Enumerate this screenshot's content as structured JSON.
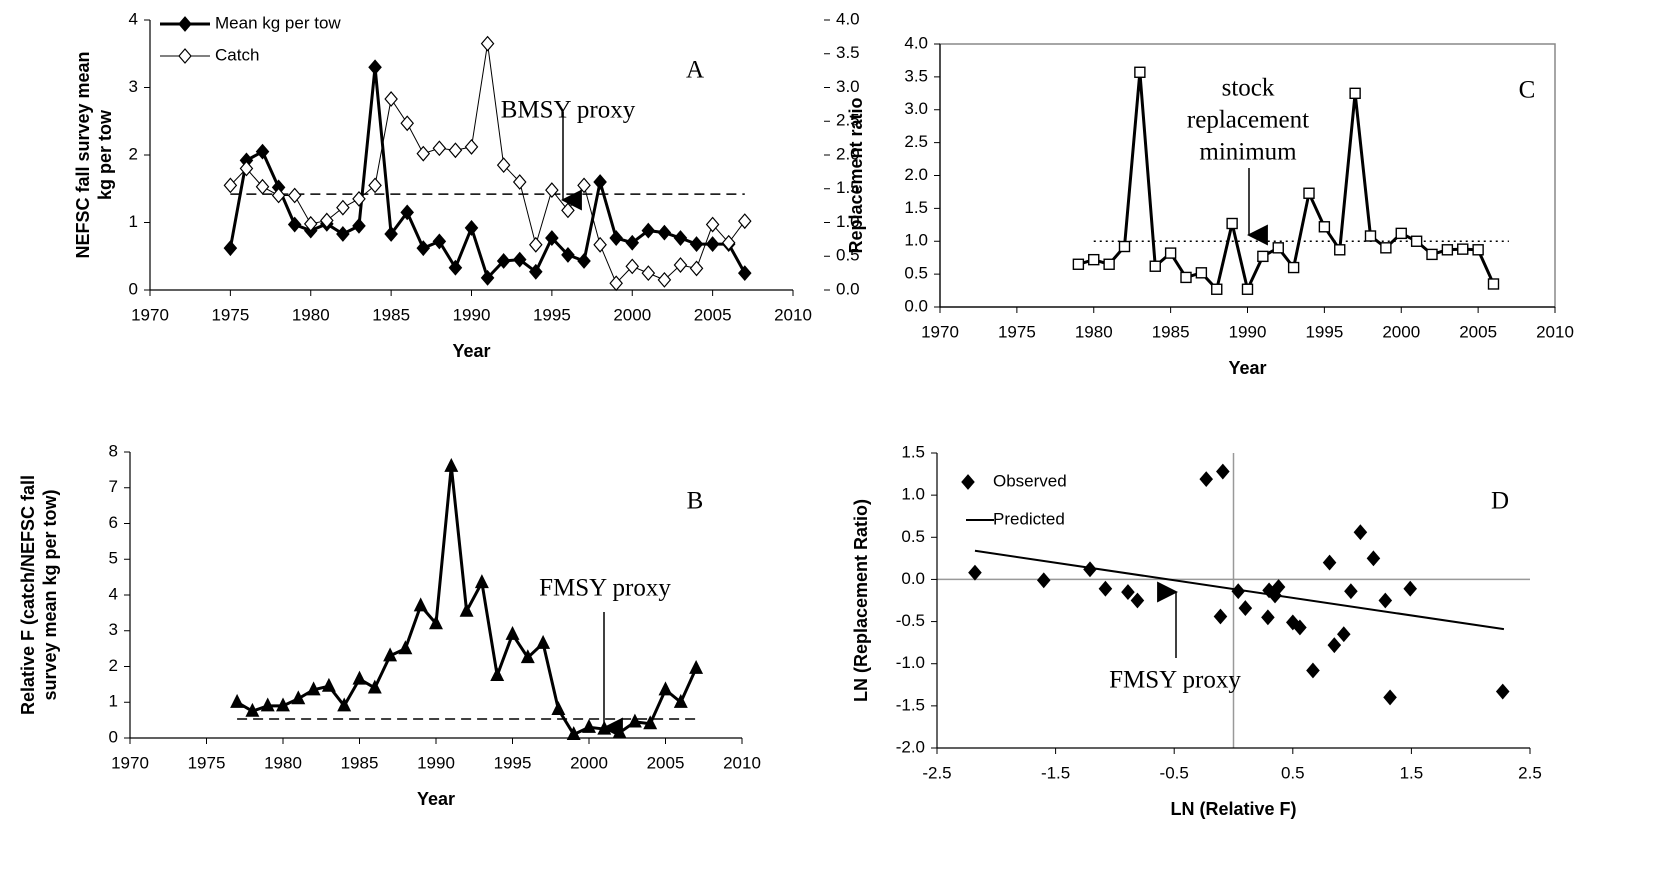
{
  "chart_data": [
    {
      "type": "line",
      "annotations": [
        "A",
        "BMSY proxy"
      ],
      "ylabel": [
        "NEFSC fall survey mean",
        "kg per tow"
      ],
      "xlabel": "Year",
      "xlim": [
        1970,
        2010
      ],
      "xticks": [
        1970,
        1975,
        1980,
        1985,
        1990,
        1995,
        2000,
        2005,
        2010
      ],
      "ylim": [
        0,
        4
      ],
      "yticks": [
        0,
        1,
        2,
        3,
        4
      ],
      "y2lim": [
        0,
        4
      ],
      "y2ticks": [
        {
          "value": 0,
          "label": "0.0"
        },
        0.5,
        {
          "value": 1,
          "label": "1.0"
        },
        1.5,
        {
          "value": 2,
          "label": "2.0"
        },
        2.5,
        {
          "value": 3,
          "label": "3.0"
        },
        3.5,
        {
          "value": 4,
          "label": "4.0"
        }
      ],
      "legend": "upper left",
      "reference_line": {
        "value": 1.42,
        "from": 1975,
        "to": 2007,
        "style": "dashed"
      },
      "x": [
        1975,
        1976,
        1977,
        1978,
        1979,
        1980,
        1981,
        1982,
        1983,
        1984,
        1985,
        1986,
        1987,
        1988,
        1989,
        1990,
        1991,
        1992,
        1993,
        1994,
        1995,
        1996,
        1997,
        1998,
        1999,
        2000,
        2001,
        2002,
        2003,
        2004,
        2005,
        2006,
        2007
      ],
      "series": [
        {
          "name": "Mean kg per tow",
          "color": "#000000",
          "marker": "diamond",
          "filled": true,
          "width": 3,
          "values": [
            0.62,
            1.92,
            2.05,
            1.52,
            0.97,
            0.88,
            0.98,
            0.83,
            0.95,
            3.3,
            0.83,
            1.15,
            0.62,
            0.72,
            0.33,
            0.92,
            0.18,
            0.43,
            0.45,
            0.27,
            0.77,
            0.52,
            0.43,
            1.6,
            0.77,
            0.7,
            0.88,
            0.85,
            0.77,
            0.68,
            0.68,
            0.68,
            0.25
          ]
        },
        {
          "name": "Catch",
          "color": "#000000",
          "marker": "diamond",
          "filled": false,
          "width": 1,
          "axis": "y2",
          "values": [
            1.55,
            1.8,
            1.53,
            1.4,
            1.4,
            0.98,
            1.03,
            1.22,
            1.35,
            1.55,
            2.83,
            2.47,
            2.02,
            2.1,
            2.07,
            2.12,
            3.65,
            1.85,
            1.6,
            0.67,
            1.48,
            1.18,
            1.55,
            0.67,
            0.1,
            0.35,
            0.25,
            0.15,
            0.37,
            0.32,
            0.97,
            0.7,
            1.02
          ]
        }
      ]
    },
    {
      "type": "line",
      "annotations": [
        "B",
        "FMSY proxy"
      ],
      "ylabel": [
        "Relative F (catch/NEFSC fall",
        "survey mean kg per tow)"
      ],
      "xlabel": "Year",
      "xlim": [
        1970,
        2010
      ],
      "xticks": [
        1970,
        1975,
        1980,
        1985,
        1990,
        1995,
        2000,
        2005,
        2010
      ],
      "ylim": [
        0,
        8
      ],
      "yticks": [
        0,
        1,
        2,
        3,
        4,
        5,
        6,
        7,
        8
      ],
      "reference_line": {
        "value": 0.53,
        "from": 1977,
        "to": 2007,
        "style": "dashed"
      },
      "x": [
        1977,
        1978,
        1979,
        1980,
        1981,
        1982,
        1983,
        1984,
        1985,
        1986,
        1987,
        1988,
        1989,
        1990,
        1991,
        1992,
        1993,
        1994,
        1995,
        1996,
        1997,
        1998,
        1999,
        2000,
        2001,
        2002,
        2003,
        2004,
        2005,
        2006,
        2007
      ],
      "series": [
        {
          "color": "#000000",
          "marker": "triangle",
          "filled": true,
          "width": 3,
          "values": [
            1.0,
            0.75,
            0.9,
            0.9,
            1.1,
            1.35,
            1.45,
            0.9,
            1.65,
            1.4,
            2.3,
            2.5,
            3.7,
            3.2,
            7.6,
            3.55,
            4.35,
            1.75,
            2.9,
            2.25,
            2.65,
            0.8,
            0.1,
            0.3,
            0.25,
            0.15,
            0.45,
            0.4,
            1.35,
            1.0,
            1.95
          ]
        }
      ]
    },
    {
      "type": "line",
      "annotations": [
        "C",
        "stock",
        "replacement",
        "minimum"
      ],
      "ylabel": [
        "Replacement ratio"
      ],
      "xlabel": "Year",
      "frame": true,
      "xlim": [
        1970,
        2010
      ],
      "xticks": [
        1970,
        1975,
        1980,
        1985,
        1990,
        1995,
        2000,
        2005,
        2010
      ],
      "ylim": [
        0,
        4
      ],
      "yticks": [
        {
          "value": 0,
          "label": "0.0"
        },
        0.5,
        {
          "value": 1,
          "label": "1.0"
        },
        1.5,
        {
          "value": 2,
          "label": "2.0"
        },
        2.5,
        {
          "value": 3,
          "label": "3.0"
        },
        3.5,
        {
          "value": 4,
          "label": "4.0"
        }
      ],
      "reference_line": {
        "value": 1.0,
        "from": 1980,
        "to": 2007,
        "style": "dotted"
      },
      "x": [
        1979,
        1980,
        1981,
        1982,
        1983,
        1984,
        1985,
        1986,
        1987,
        1988,
        1989,
        1990,
        1991,
        1992,
        1993,
        1994,
        1995,
        1996,
        1997,
        1998,
        1999,
        2000,
        2001,
        2002,
        2003,
        2004,
        2005,
        2006
      ],
      "series": [
        {
          "color": "#000000",
          "marker": "square",
          "filled": false,
          "width": 3,
          "values": [
            0.65,
            0.72,
            0.65,
            0.92,
            3.57,
            0.62,
            0.82,
            0.45,
            0.52,
            0.27,
            1.27,
            0.27,
            0.77,
            0.9,
            0.6,
            1.73,
            1.22,
            0.87,
            3.25,
            1.08,
            0.9,
            1.12,
            1.0,
            0.8,
            0.87,
            0.88,
            0.87,
            0.35
          ]
        }
      ]
    },
    {
      "type": "scatter",
      "annotations": [
        "D",
        "FMSY proxy"
      ],
      "ylabel": [
        "LN (Replacement Ratio)"
      ],
      "xlabel": "LN (Relative F)",
      "zero_lines": true,
      "legend": "upper left",
      "xlim": [
        -2.5,
        2.5
      ],
      "xticks": [
        -2.5,
        -1.5,
        -0.5,
        0.5,
        1.5,
        2.5
      ],
      "ylim": [
        -2,
        1.5
      ],
      "yticks": [
        {
          "value": -2,
          "label": "-2.0"
        },
        -1.5,
        {
          "value": -1,
          "label": "-1.0"
        },
        -0.5,
        {
          "value": 0,
          "label": "0.0"
        },
        0.5,
        {
          "value": 1,
          "label": "1.0"
        },
        1.5
      ],
      "series": [
        {
          "name": "Observed",
          "color": "#000000",
          "marker": "diamond",
          "filled": true,
          "width": 0,
          "x": [
            -2.18,
            -1.6,
            -1.21,
            -1.08,
            -0.89,
            -0.81,
            -0.23,
            -0.09,
            -0.11,
            0.04,
            0.1,
            0.29,
            0.3,
            0.35,
            0.38,
            0.5,
            0.56,
            0.67,
            0.81,
            0.85,
            0.93,
            0.99,
            1.07,
            1.18,
            1.28,
            1.32,
            1.49,
            2.27
          ],
          "values": [
            0.08,
            -0.01,
            0.12,
            -0.11,
            -0.15,
            -0.25,
            1.19,
            1.28,
            -0.44,
            -0.14,
            -0.34,
            -0.45,
            -0.13,
            -0.19,
            -0.09,
            -0.51,
            -0.57,
            -1.08,
            0.2,
            -0.78,
            -0.65,
            -0.14,
            0.56,
            0.25,
            -0.25,
            -1.4,
            -0.11,
            -1.33
          ]
        },
        {
          "name": "Predicted",
          "color": "#000000",
          "marker": "none",
          "width": 2,
          "x": [
            -2.18,
            2.28
          ],
          "values": [
            0.34,
            -0.59
          ]
        }
      ]
    }
  ]
}
